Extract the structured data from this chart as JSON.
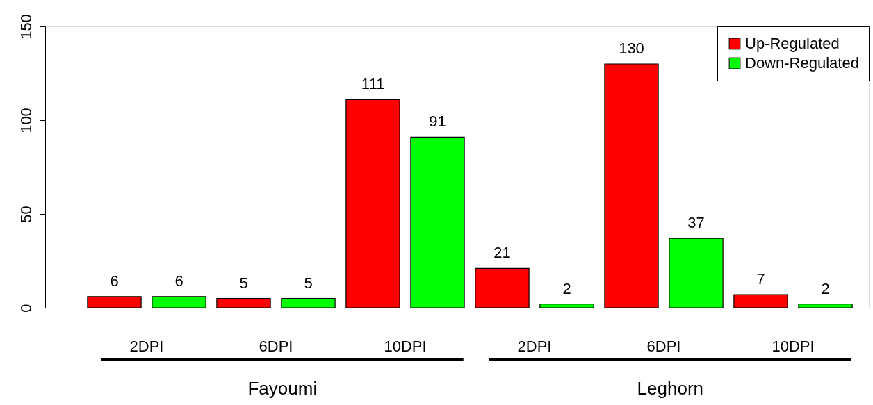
{
  "chart_data": {
    "type": "bar",
    "categories": [
      "2DPI",
      "6DPI",
      "10DPI",
      "2DPI",
      "6DPI",
      "10DPI"
    ],
    "series": [
      {
        "name": "Up-Regulated",
        "color": "#ff0000",
        "values": [
          6,
          5,
          111,
          21,
          130,
          7
        ]
      },
      {
        "name": "Down-Regulated",
        "color": "#00ff00",
        "values": [
          6,
          5,
          91,
          2,
          37,
          2
        ]
      }
    ],
    "ylim": [
      0,
      150
    ],
    "yticks": [
      0,
      50,
      100,
      150
    ],
    "data_labels": true,
    "legend": "top right",
    "grid": false,
    "annotations": [
      "Fayoumi",
      "Leghorn"
    ]
  }
}
